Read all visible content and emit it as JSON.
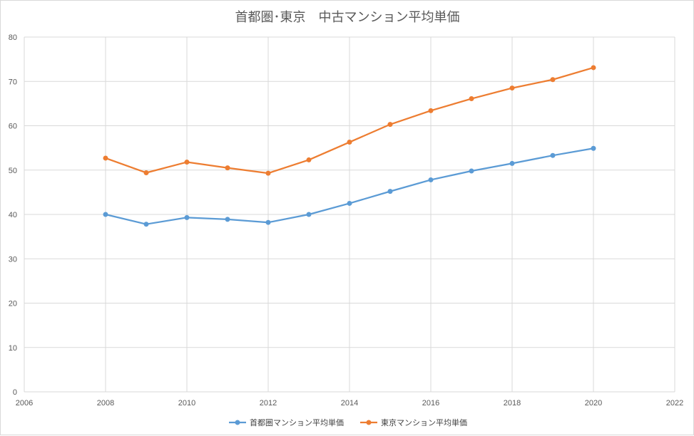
{
  "chart_data": {
    "type": "line",
    "title": "首都圏･東京　中古マンション平均単価",
    "x": [
      2008,
      2009,
      2010,
      2011,
      2012,
      2013,
      2014,
      2015,
      2016,
      2017,
      2018,
      2019,
      2020
    ],
    "xlim": [
      2006,
      2022
    ],
    "xticks": [
      2006,
      2008,
      2010,
      2012,
      2014,
      2016,
      2018,
      2020,
      2022
    ],
    "ylim": [
      0,
      80
    ],
    "yticks": [
      0,
      10,
      20,
      30,
      40,
      50,
      60,
      70,
      80
    ],
    "grid": true,
    "legend_position": "bottom",
    "series": [
      {
        "name": "首都圏マンション平均単価",
        "color": "#5b9bd5",
        "values": [
          40.0,
          37.8,
          39.3,
          38.9,
          38.2,
          40.0,
          42.5,
          45.2,
          47.8,
          49.8,
          51.5,
          53.3,
          54.9
        ]
      },
      {
        "name": "東京マンション平均単価",
        "color": "#ed7d31",
        "values": [
          52.7,
          49.4,
          51.8,
          50.5,
          49.3,
          52.3,
          56.3,
          60.3,
          63.4,
          66.1,
          68.5,
          70.4,
          73.1
        ]
      }
    ]
  }
}
